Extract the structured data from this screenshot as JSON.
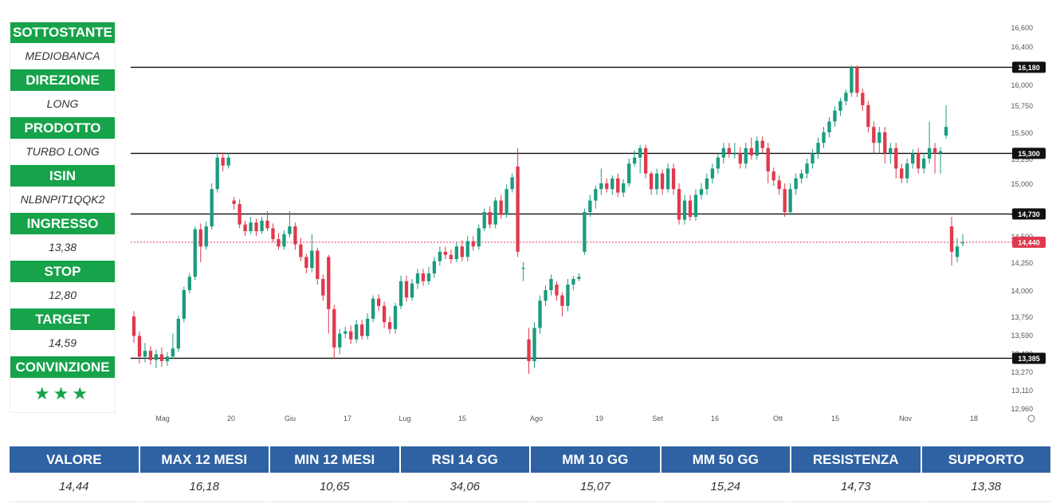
{
  "side_panel": [
    {
      "label": "SOTTOSTANTE",
      "value": "MEDIOBANCA"
    },
    {
      "label": "DIREZIONE",
      "value": "LONG"
    },
    {
      "label": "PRODOTTO",
      "value": "TURBO LONG"
    },
    {
      "label": "ISIN",
      "value": "NLBNPIT1QQK2"
    },
    {
      "label": "INGRESSO",
      "value": "13,38"
    },
    {
      "label": "STOP",
      "value": "12,80"
    },
    {
      "label": "TARGET",
      "value": "14,59"
    },
    {
      "label": "CONVINZIONE",
      "value": "★★★"
    }
  ],
  "stats": {
    "headers": [
      "VALORE",
      "MAX 12 MESI",
      "MIN 12 MESI",
      "RSI 14 GG",
      "MM 10 GG",
      "MM 50 GG",
      "RESISTENZA",
      "SUPPORTO"
    ],
    "values": [
      "14,44",
      "16,18",
      "10,65",
      "34,06",
      "15,07",
      "15,24",
      "14,73",
      "13,38"
    ]
  },
  "colors": {
    "up": "#1a9c7e",
    "down": "#e0394d",
    "panel_green": "#16a34a",
    "table_blue": "#2f62a3"
  },
  "chart_data": {
    "type": "candlestick",
    "x_ticks": [
      "Mag",
      "20",
      "Giu",
      "17",
      "Lug",
      "15",
      "Ago",
      "19",
      "Set",
      "16",
      "Ott",
      "15",
      "Nov",
      "18"
    ],
    "y_ticks": [
      "16,600",
      "16,400",
      "16,000",
      "15,750",
      "15,500",
      "15,250",
      "15,000",
      "14,750",
      "14,500",
      "14,250",
      "14,000",
      "13,750",
      "13,590",
      "13,430",
      "13,270",
      "13,110",
      "12,960"
    ],
    "ylim": [
      12.96,
      16.6
    ],
    "horizontal_levels": [
      {
        "value": 16.18,
        "label": "16,180"
      },
      {
        "value": 15.3,
        "label": "15,300"
      },
      {
        "value": 14.73,
        "label": "14,730"
      },
      {
        "value": 13.385,
        "label": "13,385"
      }
    ],
    "last_price": {
      "value": 14.44,
      "label": "14,440"
    },
    "candles": [
      [
        13.75,
        13.58,
        13.8,
        13.52
      ],
      [
        13.58,
        13.4,
        13.62,
        13.34
      ],
      [
        13.4,
        13.45,
        13.52,
        13.35
      ],
      [
        13.45,
        13.37,
        13.49,
        13.33
      ],
      [
        13.37,
        13.42,
        13.46,
        13.3
      ],
      [
        13.42,
        13.36,
        13.48,
        13.31
      ],
      [
        13.36,
        13.4,
        13.44,
        13.32
      ],
      [
        13.4,
        13.47,
        13.6,
        13.38
      ],
      [
        13.47,
        13.73,
        13.76,
        13.44
      ],
      [
        13.73,
        14.0,
        14.03,
        13.7
      ],
      [
        14.0,
        14.12,
        14.15,
        13.97
      ],
      [
        14.12,
        14.57,
        14.6,
        14.09
      ],
      [
        14.57,
        14.4,
        14.63,
        14.25
      ],
      [
        14.4,
        14.6,
        14.65,
        14.37
      ],
      [
        14.6,
        14.95,
        15.0,
        14.57
      ],
      [
        14.95,
        15.26,
        15.31,
        14.92
      ],
      [
        15.26,
        15.18,
        15.31,
        15.12
      ],
      [
        15.18,
        15.26,
        15.3,
        15.15
      ],
      [
        14.85,
        14.82,
        14.88,
        14.77
      ],
      [
        14.82,
        14.62,
        14.86,
        14.58
      ],
      [
        14.62,
        14.55,
        14.66,
        14.5
      ],
      [
        14.55,
        14.64,
        14.7,
        14.52
      ],
      [
        14.64,
        14.55,
        14.68,
        14.5
      ],
      [
        14.55,
        14.66,
        14.7,
        14.52
      ],
      [
        14.66,
        14.58,
        14.76,
        14.55
      ],
      [
        14.58,
        14.47,
        14.63,
        14.44
      ],
      [
        14.47,
        14.4,
        14.53,
        14.37
      ],
      [
        14.4,
        14.52,
        14.56,
        14.37
      ],
      [
        14.52,
        14.6,
        14.76,
        14.49
      ],
      [
        14.6,
        14.42,
        14.64,
        14.37
      ],
      [
        14.42,
        14.3,
        14.48,
        14.26
      ],
      [
        14.3,
        14.2,
        14.33,
        14.15
      ],
      [
        14.2,
        14.36,
        14.52,
        14.16
      ],
      [
        14.36,
        14.1,
        14.39,
        14.05
      ],
      [
        14.1,
        13.95,
        14.14,
        13.9
      ],
      [
        14.3,
        13.82,
        14.32,
        13.6
      ],
      [
        13.82,
        13.48,
        13.86,
        13.38
      ],
      [
        13.48,
        13.6,
        13.64,
        13.42
      ],
      [
        13.6,
        13.62,
        13.66,
        13.56
      ],
      [
        13.62,
        13.55,
        13.67,
        13.51
      ],
      [
        13.55,
        13.68,
        13.72,
        13.52
      ],
      [
        13.68,
        13.58,
        13.72,
        13.55
      ],
      [
        13.58,
        13.73,
        13.78,
        13.55
      ],
      [
        13.73,
        13.92,
        13.95,
        13.7
      ],
      [
        13.92,
        13.85,
        13.96,
        13.8
      ],
      [
        13.85,
        13.7,
        13.89,
        13.65
      ],
      [
        13.7,
        13.64,
        13.75,
        13.6
      ],
      [
        13.64,
        13.85,
        13.88,
        13.6
      ],
      [
        13.85,
        14.08,
        14.13,
        13.82
      ],
      [
        14.08,
        13.93,
        14.13,
        13.89
      ],
      [
        13.93,
        14.06,
        14.1,
        13.9
      ],
      [
        14.06,
        14.15,
        14.19,
        14.01
      ],
      [
        14.15,
        14.08,
        14.19,
        14.04
      ],
      [
        14.08,
        14.15,
        14.21,
        14.05
      ],
      [
        14.15,
        14.26,
        14.3,
        14.11
      ],
      [
        14.26,
        14.35,
        14.4,
        14.22
      ],
      [
        14.35,
        14.32,
        14.4,
        14.28
      ],
      [
        14.32,
        14.28,
        14.37,
        14.24
      ],
      [
        14.28,
        14.4,
        14.44,
        14.25
      ],
      [
        14.4,
        14.3,
        14.46,
        14.26
      ],
      [
        14.3,
        14.45,
        14.5,
        14.26
      ],
      [
        14.45,
        14.4,
        14.5,
        14.36
      ],
      [
        14.4,
        14.58,
        14.62,
        14.37
      ],
      [
        14.58,
        14.75,
        14.78,
        14.55
      ],
      [
        14.75,
        14.62,
        14.8,
        14.58
      ],
      [
        14.62,
        14.85,
        14.88,
        14.58
      ],
      [
        14.85,
        14.72,
        14.9,
        14.68
      ],
      [
        14.72,
        14.95,
        14.99,
        14.69
      ],
      [
        14.95,
        15.06,
        15.1,
        14.92
      ],
      [
        15.17,
        14.35,
        15.35,
        14.3
      ],
      [
        14.2,
        14.2,
        14.25,
        14.08
      ],
      [
        13.55,
        13.36,
        13.65,
        13.25
      ],
      [
        13.36,
        13.65,
        13.7,
        13.3
      ],
      [
        13.65,
        13.9,
        13.95,
        13.6
      ],
      [
        13.9,
        14.0,
        14.04,
        13.85
      ],
      [
        14.0,
        14.1,
        14.14,
        13.95
      ],
      [
        14.05,
        13.95,
        14.08,
        13.9
      ],
      [
        13.95,
        13.85,
        13.98,
        13.75
      ],
      [
        13.85,
        14.05,
        14.1,
        13.8
      ],
      [
        14.05,
        14.1,
        14.13,
        14.0
      ],
      [
        14.1,
        14.12,
        14.15,
        14.08
      ],
      [
        14.35,
        14.75,
        14.78,
        14.32
      ],
      [
        14.75,
        14.85,
        14.9,
        14.7
      ],
      [
        14.85,
        14.95,
        14.98,
        14.78
      ],
      [
        14.95,
        15.0,
        15.15,
        14.9
      ],
      [
        15.0,
        14.95,
        15.05,
        14.92
      ],
      [
        14.95,
        15.05,
        15.08,
        14.9
      ],
      [
        15.05,
        14.92,
        15.1,
        14.88
      ],
      [
        14.92,
        15.0,
        15.04,
        14.88
      ],
      [
        15.0,
        15.2,
        15.25,
        14.97
      ],
      [
        15.2,
        15.26,
        15.33,
        15.17
      ],
      [
        15.26,
        15.35,
        15.38,
        15.1
      ],
      [
        15.35,
        15.1,
        15.38,
        15.05
      ],
      [
        15.1,
        14.95,
        15.12,
        14.9
      ],
      [
        14.95,
        15.1,
        15.15,
        14.9
      ],
      [
        15.1,
        14.95,
        15.14,
        14.9
      ],
      [
        14.95,
        15.15,
        15.2,
        14.92
      ],
      [
        15.15,
        14.95,
        15.2,
        14.9
      ],
      [
        14.95,
        14.67,
        15.0,
        14.62
      ],
      [
        14.67,
        14.85,
        14.9,
        14.62
      ],
      [
        14.85,
        14.7,
        14.9,
        14.66
      ],
      [
        14.7,
        14.9,
        14.95,
        14.66
      ],
      [
        14.9,
        14.95,
        15.0,
        14.86
      ],
      [
        14.95,
        15.05,
        15.1,
        14.9
      ],
      [
        15.05,
        15.15,
        15.2,
        15.0
      ],
      [
        15.15,
        15.26,
        15.3,
        15.1
      ],
      [
        15.26,
        15.35,
        15.4,
        15.2
      ],
      [
        15.35,
        15.3,
        15.4,
        15.26
      ],
      [
        15.3,
        15.3,
        15.4,
        15.25
      ],
      [
        15.3,
        15.2,
        15.36,
        15.15
      ],
      [
        15.2,
        15.35,
        15.4,
        15.15
      ],
      [
        15.35,
        15.28,
        15.45,
        15.24
      ],
      [
        15.28,
        15.42,
        15.46,
        15.24
      ],
      [
        15.42,
        15.35,
        15.46,
        15.3
      ],
      [
        15.35,
        15.12,
        15.4,
        15.0
      ],
      [
        15.12,
        15.03,
        15.16,
        14.98
      ],
      [
        15.03,
        14.95,
        15.08,
        14.9
      ],
      [
        14.95,
        14.75,
        15.0,
        14.7
      ],
      [
        14.75,
        14.95,
        15.0,
        14.72
      ],
      [
        14.95,
        15.05,
        15.1,
        14.9
      ],
      [
        15.05,
        15.1,
        15.14,
        15.0
      ],
      [
        15.1,
        15.2,
        15.25,
        15.05
      ],
      [
        15.2,
        15.3,
        15.34,
        15.15
      ],
      [
        15.3,
        15.4,
        15.45,
        15.25
      ],
      [
        15.4,
        15.5,
        15.55,
        15.35
      ],
      [
        15.5,
        15.6,
        15.64,
        15.45
      ],
      [
        15.6,
        15.7,
        15.74,
        15.55
      ],
      [
        15.7,
        15.8,
        15.84,
        15.65
      ],
      [
        15.8,
        15.9,
        15.94,
        15.75
      ],
      [
        15.9,
        16.18,
        16.2,
        15.85
      ],
      [
        16.18,
        15.9,
        16.2,
        15.85
      ],
      [
        15.9,
        15.75,
        15.95,
        15.7
      ],
      [
        15.75,
        15.55,
        15.8,
        15.5
      ],
      [
        15.55,
        15.4,
        15.6,
        15.3
      ],
      [
        15.4,
        15.5,
        15.55,
        15.3
      ],
      [
        15.5,
        15.3,
        15.55,
        15.2
      ],
      [
        15.3,
        15.35,
        15.4,
        15.2
      ],
      [
        15.35,
        15.15,
        15.4,
        15.05
      ],
      [
        15.15,
        15.05,
        15.2,
        15.0
      ],
      [
        15.05,
        15.2,
        15.25,
        15.0
      ],
      [
        15.2,
        15.3,
        15.34,
        15.15
      ],
      [
        15.3,
        15.15,
        15.35,
        15.1
      ],
      [
        15.15,
        15.25,
        15.3,
        15.1
      ],
      [
        15.25,
        15.35,
        15.6,
        15.2
      ],
      [
        15.35,
        15.3,
        15.4,
        15.1
      ],
      [
        15.3,
        15.32,
        15.36,
        15.1
      ],
      [
        15.47,
        15.55,
        15.75,
        15.44
      ],
      [
        14.6,
        14.35,
        14.7,
        14.22
      ],
      [
        14.3,
        14.4,
        14.48,
        14.25
      ],
      [
        14.43,
        14.44,
        14.52,
        14.4
      ]
    ]
  }
}
